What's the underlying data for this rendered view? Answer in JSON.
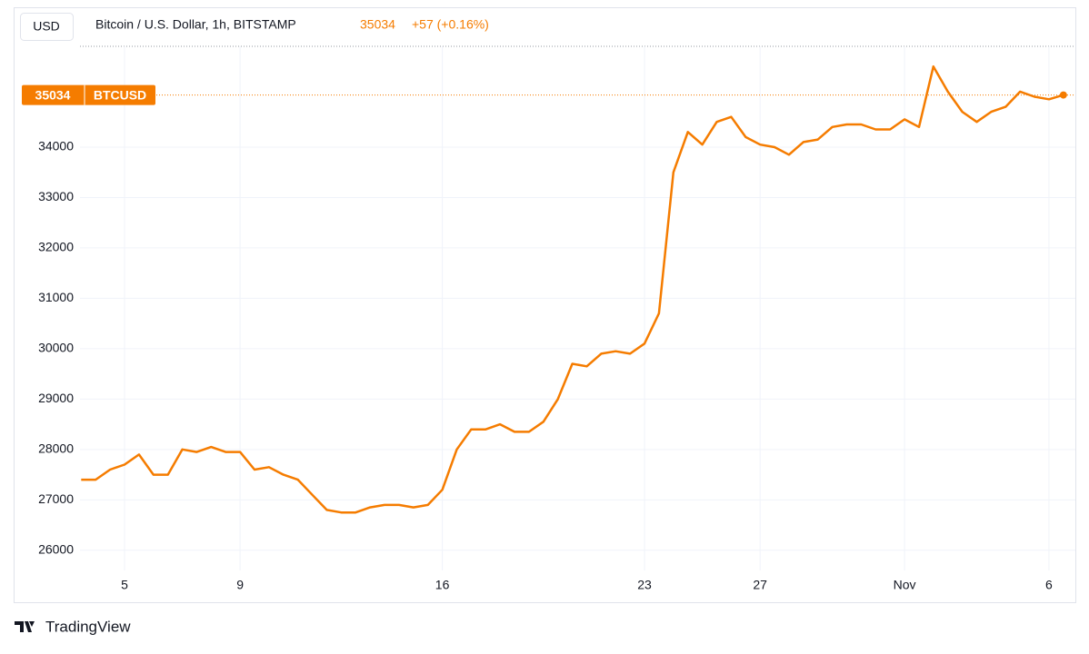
{
  "header": {
    "currency": "USD",
    "title": "Bitcoin / U.S. Dollar, 1h, BITSTAMP",
    "change": "+57 (+0.16%)",
    "symbol": "BTCUSD",
    "brand": "TradingView"
  },
  "chart_data": {
    "type": "line",
    "color": "#f57c00",
    "grid": true,
    "categories": [
      null,
      null,
      null,
      "5",
      null,
      null,
      null,
      null,
      null,
      null,
      null,
      "9",
      null,
      null,
      null,
      null,
      null,
      null,
      null,
      null,
      null,
      null,
      null,
      null,
      null,
      "16",
      null,
      null,
      null,
      null,
      null,
      null,
      null,
      null,
      null,
      null,
      null,
      null,
      null,
      "23",
      null,
      null,
      null,
      null,
      null,
      null,
      null,
      "27",
      null,
      null,
      null,
      null,
      null,
      null,
      null,
      null,
      null,
      "Nov",
      null,
      null,
      null,
      null,
      null,
      null,
      null,
      null,
      null,
      "6",
      null
    ],
    "values": [
      27400,
      27400,
      27600,
      27700,
      27900,
      27500,
      27500,
      28000,
      27950,
      28050,
      27950,
      27950,
      27600,
      27650,
      27500,
      27400,
      27100,
      26800,
      26750,
      26750,
      26850,
      26900,
      26900,
      26850,
      26900,
      27200,
      28000,
      28400,
      28400,
      28500,
      28350,
      28350,
      28550,
      29000,
      29700,
      29650,
      29900,
      29950,
      29900,
      30100,
      30700,
      33500,
      34300,
      34050,
      34500,
      34600,
      34200,
      34050,
      34000,
      33850,
      34100,
      34150,
      34400,
      34450,
      34450,
      34350,
      34350,
      34550,
      34400,
      35600,
      35100,
      34700,
      34500,
      34700,
      34800,
      35100,
      35000,
      34950,
      35034
    ],
    "ylim": [
      25600,
      36000
    ],
    "yticks": [
      26000,
      27000,
      28000,
      29000,
      30000,
      31000,
      32000,
      33000,
      34000
    ]
  }
}
